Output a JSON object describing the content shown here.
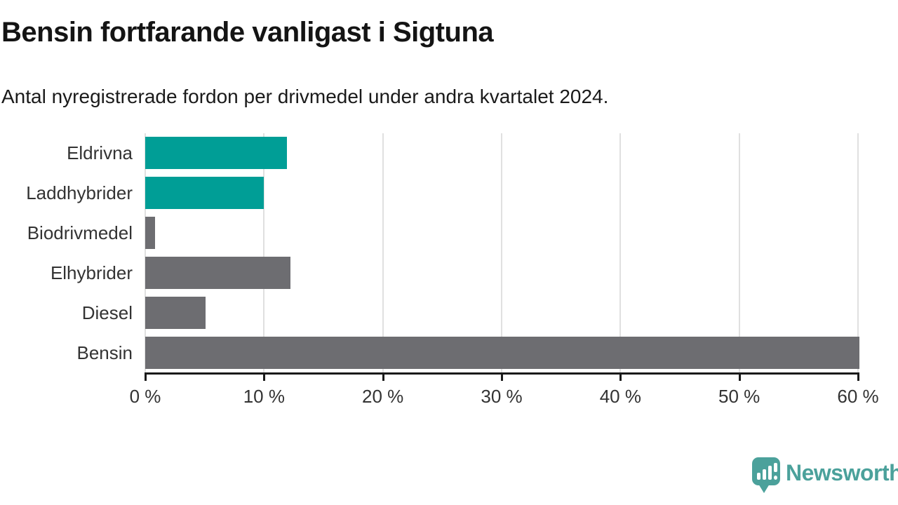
{
  "chart_data": {
    "type": "bar",
    "orientation": "horizontal",
    "title": "Bensin fortfarande vanligast i Sigtuna",
    "subtitle": "Antal nyregistrerade fordon per drivmedel under andra kvartalet 2024.",
    "categories": [
      "Eldrivna",
      "Laddhybrider",
      "Biodrivmedel",
      "Elhybrider",
      "Diesel",
      "Bensin"
    ],
    "values": [
      11.9,
      10.0,
      0.8,
      12.2,
      5.1,
      60.1
    ],
    "unit": "%",
    "bar_colors": [
      "#009E96",
      "#009E96",
      "#6D6D71",
      "#6D6D71",
      "#6D6D71",
      "#6D6D71"
    ],
    "xlabel": "",
    "ylabel": "",
    "xlim": [
      0,
      60
    ],
    "x_tick_values": [
      0,
      10,
      20,
      30,
      40,
      50,
      60
    ],
    "x_tick_labels": [
      "0 %",
      "10 %",
      "20 %",
      "30 %",
      "40 %",
      "50 %",
      "60 %"
    ],
    "grid": "vertical",
    "legend": "none"
  },
  "colors": {
    "accent_teal": "#009E96",
    "bar_gray": "#6D6D71",
    "gridline": "#E0E0E0",
    "axis": "#1A1A1A",
    "text_dark": "#141414",
    "text_label": "#333333",
    "logo_teal": "#4BA19B"
  },
  "branding": {
    "logo_text": "Newsworthy"
  }
}
